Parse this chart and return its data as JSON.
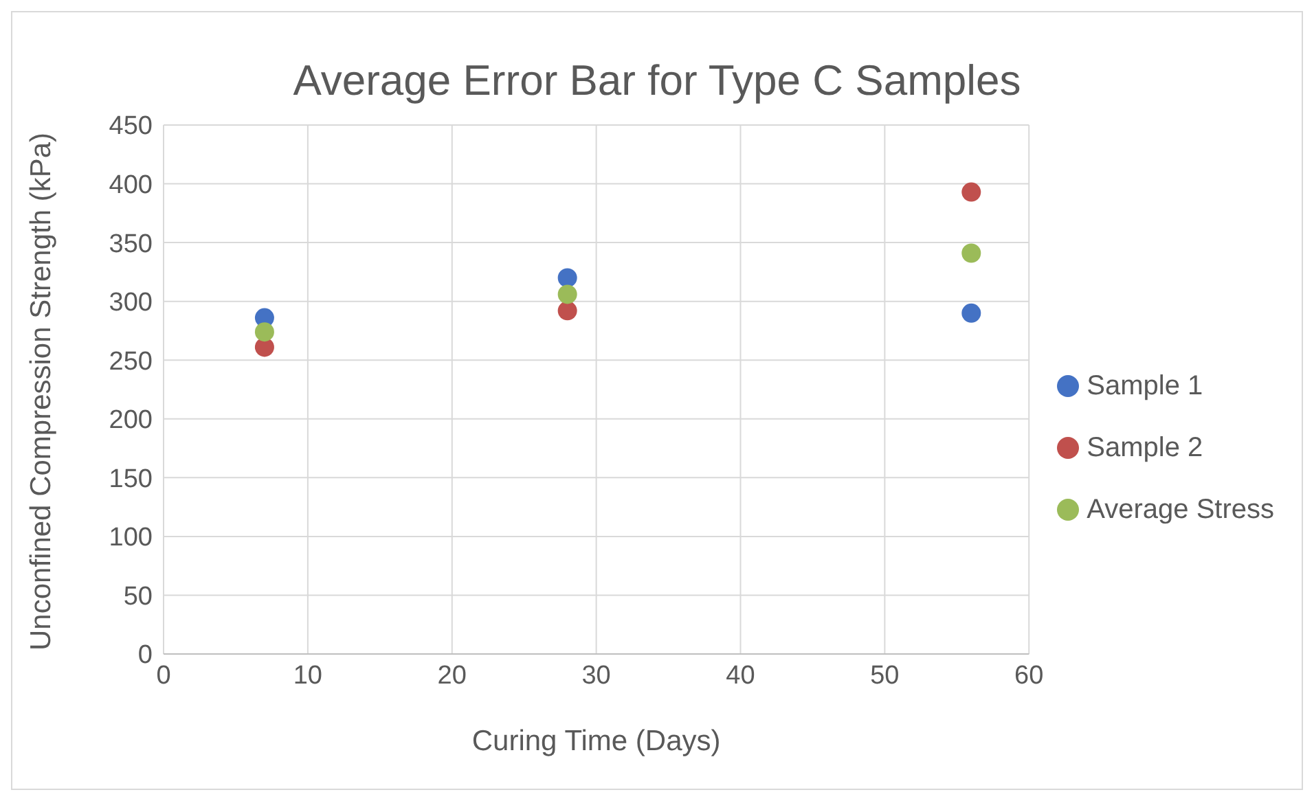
{
  "chart_data": {
    "type": "scatter",
    "title": "Average Error Bar for Type C Samples",
    "xlabel": "Curing Time (Days)",
    "ylabel": "Unconfined Compression Strength (kPa)",
    "x": [
      7,
      28,
      56
    ],
    "series": [
      {
        "name": "Sample 1",
        "color": "#4472c4",
        "values": [
          286,
          320,
          290
        ]
      },
      {
        "name": "Sample 2",
        "color": "#c0504d",
        "values": [
          261,
          292,
          393
        ]
      },
      {
        "name": "Average Stress",
        "color": "#9bbb59",
        "values": [
          274,
          306,
          341
        ]
      }
    ],
    "xlim": [
      0,
      60
    ],
    "xticks": [
      0,
      10,
      20,
      30,
      40,
      50,
      60
    ],
    "ylim": [
      0,
      450
    ],
    "yticks": [
      0,
      50,
      100,
      150,
      200,
      250,
      300,
      350,
      400,
      450
    ],
    "grid": true,
    "legend": "right",
    "marker": "circle"
  }
}
